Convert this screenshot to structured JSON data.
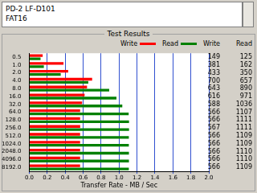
{
  "header": {
    "lines": [
      "PD-2 LF-D101",
      "FAT16"
    ]
  },
  "chart_data": {
    "type": "bar",
    "orientation": "horizontal",
    "title": "Test Results",
    "x_label": "Transfer Rate - MB / Sec",
    "categories": [
      "0.5",
      "1.0",
      "2.0",
      "4.0",
      "8.0",
      "16.0",
      "32.0",
      "64.0",
      "128.0",
      "256.0",
      "512.0",
      "1024.0",
      "2048.0",
      "4096.0",
      "8192.0"
    ],
    "series": [
      {
        "name": "Write",
        "color": "#ff0000",
        "values": [
          0.149,
          0.381,
          0.433,
          0.7,
          0.643,
          0.616,
          0.588,
          0.566,
          0.566,
          0.567,
          0.566,
          0.566,
          0.566,
          0.566,
          0.566
        ]
      },
      {
        "name": "Read",
        "color": "#008000",
        "values": [
          0.125,
          0.162,
          0.35,
          0.657,
          0.89,
          0.971,
          1.036,
          1.107,
          1.111,
          1.111,
          1.109,
          1.109,
          1.11,
          1.11,
          1.109
        ]
      }
    ],
    "xlim": [
      0,
      2
    ],
    "xticks": [
      {
        "value": 0,
        "label": "0.0"
      },
      0.2,
      0.4,
      0.6,
      0.8,
      {
        "value": 1,
        "label": "1.0"
      },
      1.2,
      1.4,
      1.6,
      1.8,
      {
        "value": 2,
        "label": "2.0"
      }
    ],
    "grid": true,
    "legend": "top"
  },
  "table": {
    "columns": [
      "Write",
      "Read"
    ],
    "rows": [
      [
        149,
        125
      ],
      [
        381,
        162
      ],
      [
        433,
        350
      ],
      [
        700,
        657
      ],
      [
        643,
        890
      ],
      [
        616,
        971
      ],
      [
        588,
        1036
      ],
      [
        566,
        1107
      ],
      [
        566,
        1111
      ],
      [
        567,
        1111
      ],
      [
        566,
        1109
      ],
      [
        566,
        1109
      ],
      [
        566,
        1110
      ],
      [
        566,
        1110
      ],
      [
        566,
        1109
      ]
    ]
  }
}
